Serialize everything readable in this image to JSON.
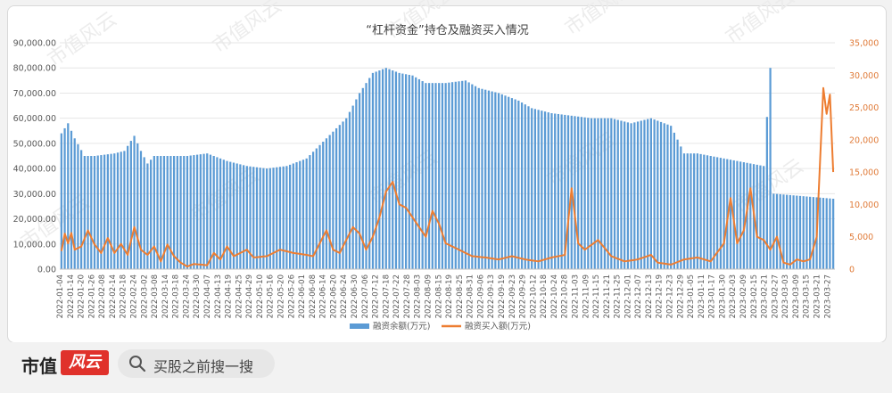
{
  "chart_data": {
    "type": "bar+line",
    "title": "“杠杆资金”持仓及融资买入情况",
    "y_left": {
      "ticks": [
        "0.00",
        "10,000.00",
        "20,000.00",
        "30,000.00",
        "40,000.00",
        "50,000.00",
        "60,000.00",
        "70,000.00",
        "80,000.00",
        "90,000.00"
      ],
      "range": [
        0,
        90000
      ]
    },
    "y_right": {
      "ticks": [
        "0",
        "5,000",
        "10,000",
        "15,000",
        "20,000",
        "25,000",
        "30,000",
        "35,000"
      ],
      "range": [
        0,
        35000
      ]
    },
    "x_ticks": [
      "2022-01-04",
      "2022-01-14",
      "2022-01-20",
      "2022-01-26",
      "2022-02-08",
      "2022-02-14",
      "2022-02-18",
      "2022-02-24",
      "2022-03-02",
      "2022-03-08",
      "2022-03-14",
      "2022-03-18",
      "2022-03-24",
      "2022-03-30",
      "2022-04-07",
      "2022-04-13",
      "2022-04-19",
      "2022-04-25",
      "2022-04-29",
      "2022-05-10",
      "2022-05-16",
      "2022-05-20",
      "2022-05-26",
      "2022-06-01",
      "2022-06-08",
      "2022-06-14",
      "2022-06-20",
      "2022-06-24",
      "2022-06-30",
      "2022-07-06",
      "2022-07-12",
      "2022-07-18",
      "2022-07-22",
      "2022-07-28",
      "2022-08-03",
      "2022-08-09",
      "2022-08-15",
      "2022-08-19",
      "2022-08-25",
      "2022-08-31",
      "2022-09-06",
      "2022-09-13",
      "2022-09-19",
      "2022-09-23",
      "2022-09-29",
      "2022-10-12",
      "2022-10-18",
      "2022-10-24",
      "2022-10-28",
      "2022-11-03",
      "2022-11-09",
      "2022-11-15",
      "2022-11-21",
      "2022-11-25",
      "2022-12-01",
      "2022-12-07",
      "2022-12-13",
      "2022-12-19",
      "2022-12-23",
      "2022-12-29",
      "2023-01-05",
      "2023-01-11",
      "2023-01-17",
      "2023-01-30",
      "2023-02-03",
      "2023-02-09",
      "2023-02-15",
      "2023-02-21",
      "2023-02-27",
      "2023-03-03",
      "2023-03-09",
      "2023-03-15",
      "2023-03-21",
      "2023-03-27"
    ],
    "series": [
      {
        "name": "融资余额(万元)",
        "type": "bar",
        "axis": "left",
        "color": "#5b9bd5",
        "anchors": [
          [
            0,
            54000
          ],
          [
            2,
            58000
          ],
          [
            4,
            52000
          ],
          [
            7,
            45000
          ],
          [
            10,
            45000
          ],
          [
            16,
            46000
          ],
          [
            19,
            47000
          ],
          [
            22,
            53000
          ],
          [
            24,
            47000
          ],
          [
            26,
            42000
          ],
          [
            28,
            45000
          ],
          [
            32,
            45000
          ],
          [
            38,
            45000
          ],
          [
            44,
            46000
          ],
          [
            50,
            43000
          ],
          [
            56,
            41000
          ],
          [
            62,
            40000
          ],
          [
            68,
            41000
          ],
          [
            74,
            44000
          ],
          [
            80,
            52000
          ],
          [
            86,
            60000
          ],
          [
            90,
            70000
          ],
          [
            94,
            78000
          ],
          [
            98,
            80000
          ],
          [
            102,
            78000
          ],
          [
            106,
            77000
          ],
          [
            110,
            74000
          ],
          [
            116,
            74000
          ],
          [
            122,
            75000
          ],
          [
            126,
            72000
          ],
          [
            132,
            70000
          ],
          [
            138,
            67000
          ],
          [
            142,
            64000
          ],
          [
            148,
            62000
          ],
          [
            154,
            61000
          ],
          [
            160,
            60000
          ],
          [
            166,
            60000
          ],
          [
            172,
            58000
          ],
          [
            178,
            60000
          ],
          [
            184,
            57000
          ],
          [
            188,
            46000
          ],
          [
            192,
            46000
          ],
          [
            200,
            44000
          ],
          [
            208,
            42000
          ],
          [
            212,
            41000
          ],
          [
            214,
            80000
          ],
          [
            215,
            30000
          ]
        ]
      },
      {
        "name": "融资买入额(万元)",
        "type": "line",
        "axis": "right",
        "color": "#ed7d31",
        "anchors": [
          [
            0,
            2800
          ],
          [
            1,
            5500
          ],
          [
            2,
            4000
          ],
          [
            3,
            5600
          ],
          [
            4,
            3000
          ],
          [
            6,
            3500
          ],
          [
            8,
            6000
          ],
          [
            10,
            3800
          ],
          [
            12,
            2500
          ],
          [
            14,
            4800
          ],
          [
            16,
            2500
          ],
          [
            18,
            3900
          ],
          [
            20,
            2200
          ],
          [
            22,
            6500
          ],
          [
            24,
            3000
          ],
          [
            26,
            2200
          ],
          [
            28,
            3500
          ],
          [
            30,
            1200
          ],
          [
            32,
            3800
          ],
          [
            34,
            2000
          ],
          [
            36,
            1000
          ],
          [
            38,
            400
          ],
          [
            40,
            800
          ],
          [
            44,
            600
          ],
          [
            46,
            2500
          ],
          [
            48,
            1500
          ],
          [
            50,
            3500
          ],
          [
            52,
            2000
          ],
          [
            56,
            3000
          ],
          [
            58,
            1800
          ],
          [
            62,
            2000
          ],
          [
            66,
            3000
          ],
          [
            70,
            2500
          ],
          [
            74,
            2200
          ],
          [
            76,
            2000
          ],
          [
            80,
            6000
          ],
          [
            82,
            3000
          ],
          [
            84,
            2500
          ],
          [
            88,
            6500
          ],
          [
            90,
            5500
          ],
          [
            92,
            3000
          ],
          [
            94,
            5000
          ],
          [
            96,
            8000
          ],
          [
            98,
            12000
          ],
          [
            100,
            13500
          ],
          [
            102,
            10000
          ],
          [
            104,
            9500
          ],
          [
            106,
            8000
          ],
          [
            110,
            5000
          ],
          [
            112,
            9000
          ],
          [
            114,
            7000
          ],
          [
            116,
            4000
          ],
          [
            118,
            3500
          ],
          [
            122,
            2500
          ],
          [
            124,
            2000
          ],
          [
            128,
            1800
          ],
          [
            132,
            1500
          ],
          [
            136,
            2000
          ],
          [
            140,
            1500
          ],
          [
            144,
            1200
          ],
          [
            148,
            1800
          ],
          [
            152,
            2200
          ],
          [
            154,
            12500
          ],
          [
            156,
            4000
          ],
          [
            158,
            3000
          ],
          [
            162,
            4500
          ],
          [
            166,
            2000
          ],
          [
            170,
            1200
          ],
          [
            174,
            1500
          ],
          [
            178,
            2200
          ],
          [
            180,
            1000
          ],
          [
            184,
            700
          ],
          [
            188,
            1500
          ],
          [
            192,
            1800
          ],
          [
            196,
            1200
          ],
          [
            200,
            4000
          ],
          [
            202,
            11000
          ],
          [
            204,
            4000
          ],
          [
            206,
            6000
          ],
          [
            208,
            12500
          ],
          [
            210,
            5000
          ],
          [
            212,
            4500
          ],
          [
            214,
            3000
          ],
          [
            216,
            5000
          ],
          [
            218,
            1000
          ],
          [
            220,
            700
          ],
          [
            222,
            1500
          ],
          [
            224,
            1200
          ],
          [
            226,
            1500
          ],
          [
            228,
            5000
          ],
          [
            230,
            28000
          ],
          [
            231,
            24000
          ],
          [
            232,
            27000
          ],
          [
            233,
            15000
          ]
        ]
      }
    ],
    "legend": [
      "融资余额(万元)",
      "融资买入额(万元)"
    ],
    "legend_position": "bottom"
  },
  "footer": {
    "logo_text": "市值",
    "logo_badge": "风云",
    "search_text": "买股之前搜一搜"
  },
  "watermark_text": "市值风云"
}
